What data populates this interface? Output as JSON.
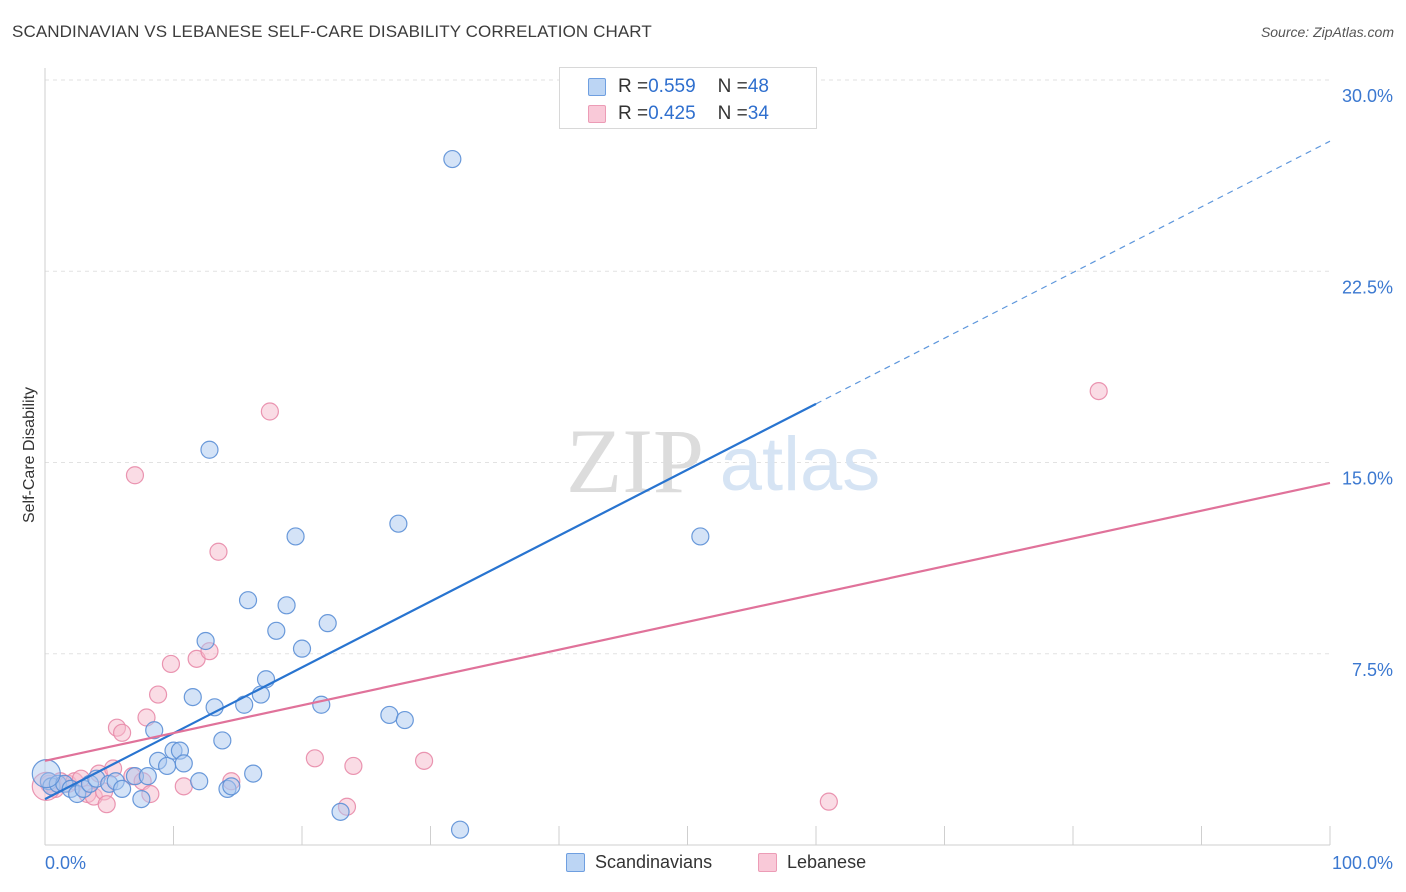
{
  "title": "SCANDINAVIAN VS LEBANESE SELF-CARE DISABILITY CORRELATION CHART",
  "source": "Source: ZipAtlas.com",
  "watermark": {
    "zip": "ZIP",
    "atlas": "atlas"
  },
  "legend": {
    "rows": [
      {
        "r_label": "R = ",
        "r_value": "0.559",
        "n_label": "N = ",
        "n_value": "48"
      },
      {
        "r_label": "R = ",
        "r_value": "0.425",
        "n_label": "N = ",
        "n_value": "34"
      }
    ]
  },
  "bottom_legend": {
    "scandinavians": "Scandinavians",
    "lebanese": "Lebanese"
  },
  "colors": {
    "blue_fill": "#a9c8f0",
    "blue_stroke": "#5b8fd6",
    "blue_line": "#2874d0",
    "pink_fill": "#f6b9cc",
    "pink_stroke": "#e88aa8",
    "pink_line": "#e0729a",
    "axis_text": "#3b78d0",
    "grid": "#e2e2e2"
  },
  "chart_data": {
    "type": "scatter",
    "title": "SCANDINAVIAN VS LEBANESE SELF-CARE DISABILITY CORRELATION CHART",
    "xlabel": "",
    "ylabel": "Self-Care Disability",
    "xlim": [
      0,
      100
    ],
    "ylim": [
      0,
      30
    ],
    "x_tick_labels": [
      "0.0%",
      "100.0%"
    ],
    "y_ticks": [
      7.5,
      15.0,
      22.5,
      30.0
    ],
    "y_tick_labels": [
      "7.5%",
      "15.0%",
      "22.5%",
      "30.0%"
    ],
    "series": [
      {
        "name": "Scandinavians",
        "r": 0.559,
        "n": 48,
        "trend": {
          "x0": 0,
          "y0": 1.8,
          "x1": 60,
          "y1": 17.3,
          "dashed_to_x": 100,
          "dashed_to_y": 27.6
        },
        "points": [
          [
            0.3,
            2.5
          ],
          [
            0.5,
            2.3
          ],
          [
            1.0,
            2.4
          ],
          [
            1.5,
            2.4
          ],
          [
            2.0,
            2.2
          ],
          [
            2.5,
            2.0
          ],
          [
            3.0,
            2.2
          ],
          [
            3.5,
            2.4
          ],
          [
            4.0,
            2.6
          ],
          [
            5.0,
            2.4
          ],
          [
            5.5,
            2.5
          ],
          [
            6.0,
            2.2
          ],
          [
            7.0,
            2.7
          ],
          [
            7.5,
            1.8
          ],
          [
            8.0,
            2.7
          ],
          [
            8.5,
            4.5
          ],
          [
            8.8,
            3.3
          ],
          [
            9.5,
            3.1
          ],
          [
            10.0,
            3.7
          ],
          [
            10.5,
            3.7
          ],
          [
            10.8,
            3.2
          ],
          [
            11.5,
            5.8
          ],
          [
            12.0,
            2.5
          ],
          [
            12.5,
            8.0
          ],
          [
            12.8,
            15.5
          ],
          [
            13.2,
            5.4
          ],
          [
            13.8,
            4.1
          ],
          [
            14.2,
            2.2
          ],
          [
            14.5,
            2.3
          ],
          [
            15.5,
            5.5
          ],
          [
            15.8,
            9.6
          ],
          [
            16.2,
            2.8
          ],
          [
            16.8,
            5.9
          ],
          [
            17.2,
            6.5
          ],
          [
            18.0,
            8.4
          ],
          [
            18.8,
            9.4
          ],
          [
            19.5,
            12.1
          ],
          [
            20.0,
            7.7
          ],
          [
            21.5,
            5.5
          ],
          [
            22.0,
            8.7
          ],
          [
            23.0,
            1.3
          ],
          [
            26.8,
            5.1
          ],
          [
            27.5,
            12.6
          ],
          [
            28.0,
            4.9
          ],
          [
            31.7,
            26.9
          ],
          [
            32.3,
            0.6
          ],
          [
            51.0,
            12.1
          ],
          [
            0.1,
            2.8
          ]
        ]
      },
      {
        "name": "Lebanese",
        "r": 0.425,
        "n": 34,
        "trend": {
          "x0": 0,
          "y0": 3.3,
          "x1": 100,
          "y1": 14.2
        },
        "points": [
          [
            0.3,
            2.4
          ],
          [
            0.8,
            2.2
          ],
          [
            1.2,
            2.5
          ],
          [
            1.8,
            2.4
          ],
          [
            2.3,
            2.5
          ],
          [
            2.8,
            2.6
          ],
          [
            3.3,
            2.0
          ],
          [
            3.8,
            1.9
          ],
          [
            4.2,
            2.8
          ],
          [
            4.6,
            2.1
          ],
          [
            4.8,
            1.6
          ],
          [
            5.3,
            3.0
          ],
          [
            5.6,
            4.6
          ],
          [
            6.0,
            4.4
          ],
          [
            6.8,
            2.7
          ],
          [
            7.0,
            14.5
          ],
          [
            7.6,
            2.5
          ],
          [
            7.9,
            5.0
          ],
          [
            8.2,
            2.0
          ],
          [
            8.8,
            5.9
          ],
          [
            9.8,
            7.1
          ],
          [
            10.8,
            2.3
          ],
          [
            11.8,
            7.3
          ],
          [
            12.8,
            7.6
          ],
          [
            13.5,
            11.5
          ],
          [
            14.5,
            2.5
          ],
          [
            17.5,
            17.0
          ],
          [
            21.0,
            3.4
          ],
          [
            23.5,
            1.5
          ],
          [
            24.0,
            3.1
          ],
          [
            29.5,
            3.3
          ],
          [
            61.0,
            1.7
          ],
          [
            82.0,
            17.8
          ],
          [
            0.1,
            2.3
          ]
        ]
      }
    ]
  }
}
